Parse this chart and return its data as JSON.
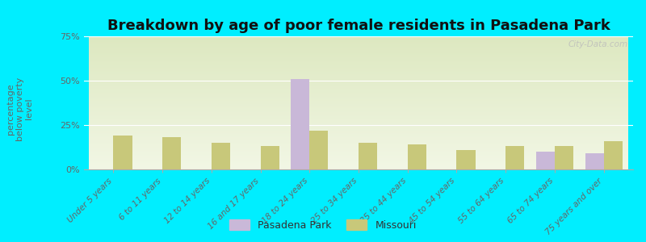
{
  "title": "Breakdown by age of poor female residents in Pasadena Park",
  "ylabel": "percentage\nbelow poverty\nlevel",
  "categories": [
    "Under 5 years",
    "6 to 11 years",
    "12 to 14 years",
    "16 and 17 years",
    "18 to 24 years",
    "25 to 34 years",
    "35 to 44 years",
    "45 to 54 years",
    "55 to 64 years",
    "65 to 74 years",
    "75 years and over"
  ],
  "pasadena_values": [
    0,
    0,
    0,
    0,
    51,
    0,
    0,
    0,
    0,
    10,
    9
  ],
  "missouri_values": [
    19,
    18,
    15,
    13,
    22,
    15,
    14,
    11,
    13,
    13,
    16
  ],
  "pasadena_color": "#c9b8d8",
  "missouri_color": "#c8c87a",
  "background_top": "#dde8c0",
  "background_bottom": "#f2f7e5",
  "plot_bg": "#00eeff",
  "ylim": [
    0,
    75
  ],
  "yticks": [
    0,
    25,
    50,
    75
  ],
  "ytick_labels": [
    "0%",
    "25%",
    "50%",
    "75%"
  ],
  "title_fontsize": 13,
  "watermark": "City-Data.com",
  "bar_width": 0.38,
  "legend_label_pasadena": "Pasadena Park",
  "legend_label_missouri": "Missouri"
}
